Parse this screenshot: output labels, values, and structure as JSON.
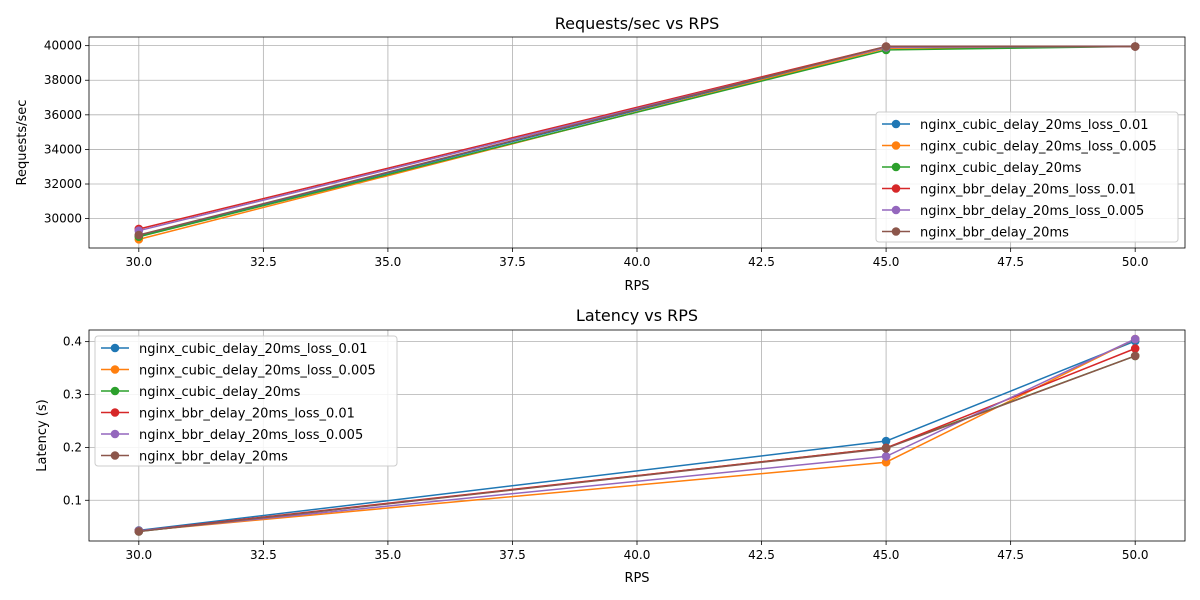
{
  "colors": {
    "nginx_cubic_delay_20ms_loss_0.01": "#1f77b4",
    "nginx_cubic_delay_20ms_loss_0.005": "#ff7f0e",
    "nginx_cubic_delay_20ms": "#2ca02c",
    "nginx_bbr_delay_20ms_loss_0.01": "#d62728",
    "nginx_bbr_delay_20ms_loss_0.005": "#9467bd",
    "nginx_bbr_delay_20ms": "#8c564b"
  },
  "chart_data": [
    {
      "type": "line",
      "title": "Requests/sec vs RPS",
      "xlabel": "RPS",
      "ylabel": "Requests/sec",
      "x": [
        30,
        45,
        50
      ],
      "xlim": [
        29,
        51
      ],
      "ylim": [
        28300,
        40500
      ],
      "xticks": [
        "30.0",
        "32.5",
        "35.0",
        "37.5",
        "40.0",
        "42.5",
        "45.0",
        "47.5",
        "50.0"
      ],
      "yticks": [
        "30000",
        "32000",
        "34000",
        "36000",
        "38000",
        "40000"
      ],
      "grid": true,
      "legend_position": "lower-right",
      "series": [
        {
          "name": "nginx_cubic_delay_20ms_loss_0.01",
          "values": [
            29000,
            39900,
            39950
          ]
        },
        {
          "name": "nginx_cubic_delay_20ms_loss_0.005",
          "values": [
            28800,
            39850,
            39950
          ]
        },
        {
          "name": "nginx_cubic_delay_20ms",
          "values": [
            28950,
            39750,
            39950
          ]
        },
        {
          "name": "nginx_bbr_delay_20ms_loss_0.01",
          "values": [
            29400,
            39950,
            39950
          ]
        },
        {
          "name": "nginx_bbr_delay_20ms_loss_0.005",
          "values": [
            29300,
            39900,
            39950
          ]
        },
        {
          "name": "nginx_bbr_delay_20ms",
          "values": [
            29050,
            39950,
            39950
          ]
        }
      ]
    },
    {
      "type": "line",
      "title": "Latency vs RPS",
      "xlabel": "RPS",
      "ylabel": "Latency (s)",
      "x": [
        30,
        45,
        50
      ],
      "xlim": [
        29,
        51
      ],
      "ylim": [
        0.023,
        0.422
      ],
      "xticks": [
        "30.0",
        "32.5",
        "35.0",
        "37.5",
        "40.0",
        "42.5",
        "45.0",
        "47.5",
        "50.0"
      ],
      "yticks": [
        "0.1",
        "0.2",
        "0.3",
        "0.4"
      ],
      "grid": true,
      "legend_position": "upper-left",
      "series": [
        {
          "name": "nginx_cubic_delay_20ms_loss_0.01",
          "values": [
            0.043,
            0.212,
            0.401
          ]
        },
        {
          "name": "nginx_cubic_delay_20ms_loss_0.005",
          "values": [
            0.042,
            0.172,
            0.405
          ]
        },
        {
          "name": "nginx_cubic_delay_20ms",
          "values": [
            0.041,
            0.199,
            0.373
          ]
        },
        {
          "name": "nginx_bbr_delay_20ms_loss_0.01",
          "values": [
            0.042,
            0.199,
            0.387
          ]
        },
        {
          "name": "nginx_bbr_delay_20ms_loss_0.005",
          "values": [
            0.042,
            0.183,
            0.405
          ]
        },
        {
          "name": "nginx_bbr_delay_20ms",
          "values": [
            0.041,
            0.198,
            0.373
          ]
        }
      ]
    }
  ]
}
